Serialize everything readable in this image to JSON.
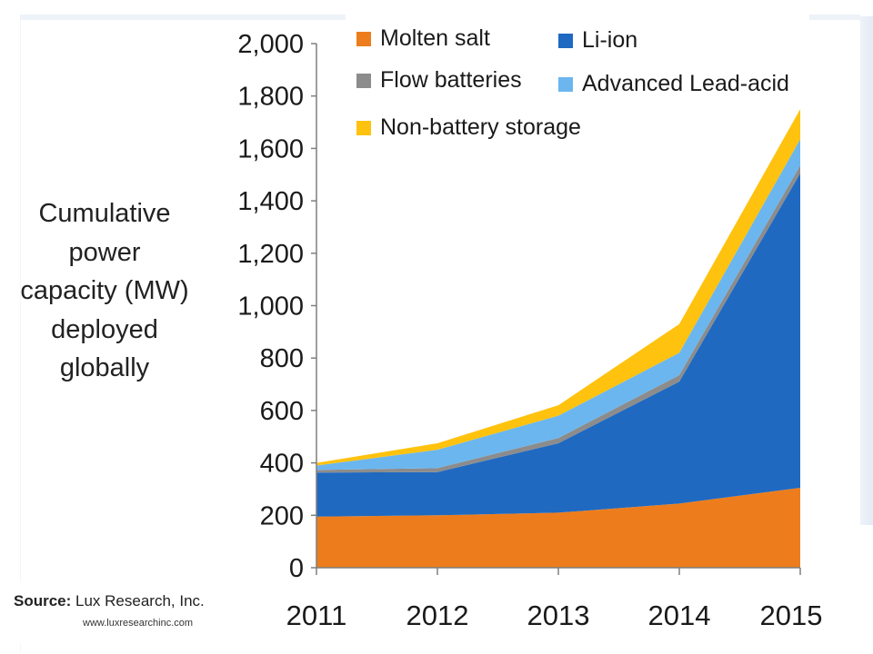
{
  "chart_data": {
    "type": "area",
    "stacked": true,
    "ylabel": "Cumulative power capacity (MW) deployed globally",
    "x": [
      "2011",
      "2012",
      "2013",
      "2014",
      "2015"
    ],
    "ylim": [
      0,
      2000
    ],
    "yticks": [
      "0",
      "200",
      "400",
      "600",
      "800",
      "1,000",
      "1,200",
      "1,400",
      "1,600",
      "1,800",
      "2,000"
    ],
    "legend_position": "top",
    "series": [
      {
        "name": "Molten salt",
        "color": "#ed7d1c",
        "values": [
          195,
          200,
          210,
          245,
          305
        ]
      },
      {
        "name": "Li-ion",
        "color": "#1f69c1",
        "values": [
          168,
          165,
          265,
          465,
          1200
        ]
      },
      {
        "name": "Flow batteries",
        "color": "#8c8c8c",
        "values": [
          10,
          15,
          20,
          25,
          30
        ]
      },
      {
        "name": "Advanced Lead-acid",
        "color": "#6bb6ef",
        "values": [
          17,
          70,
          85,
          85,
          100
        ]
      },
      {
        "name": "Non-battery storage",
        "color": "#ffc20e",
        "values": [
          10,
          25,
          40,
          110,
          115
        ]
      }
    ]
  },
  "source": {
    "label": "Source:",
    "text": " Lux Research, Inc.",
    "url": "www.luxresearchinc.com"
  }
}
